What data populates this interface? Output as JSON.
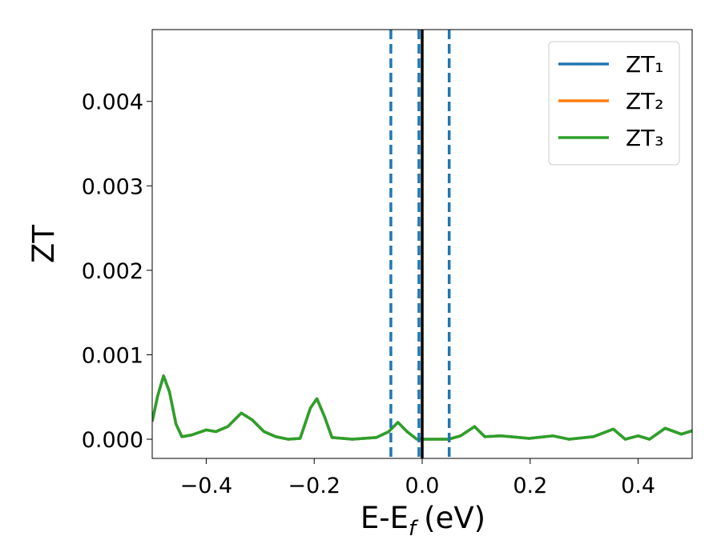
{
  "chart_data": {
    "type": "line",
    "x_label": {
      "main": "E-E",
      "sub": "f",
      "unit": "(eV)"
    },
    "y_label": "ZT",
    "xlim": [
      -0.5,
      0.5
    ],
    "ylim": [
      -0.000227,
      0.00485
    ],
    "xticks": [
      {
        "value": -0.4,
        "label": "−0.4"
      },
      {
        "value": -0.2,
        "label": "−0.2"
      },
      {
        "value": 0,
        "label": "0.0"
      },
      0.2,
      0.4
    ],
    "yticks": [
      {
        "value": 0,
        "label": "0.000"
      },
      {
        "value": 0.001,
        "label": "0.001"
      },
      {
        "value": 0.002,
        "label": "0.002"
      },
      {
        "value": 0.003,
        "label": "0.003"
      },
      {
        "value": 0.004,
        "label": "0.004"
      }
    ],
    "legend": "upper right",
    "vlines": [
      {
        "x": -0.058,
        "color": "#1f77b4",
        "style": "dashed"
      },
      {
        "x": -0.006,
        "color": "#1f77b4",
        "style": "dashed"
      },
      {
        "x": 0.05,
        "color": "#1f77b4",
        "style": "dashed"
      },
      {
        "x": 0,
        "color": "#000000",
        "style": "solid"
      }
    ],
    "x": [
      -0.5,
      -0.49,
      -0.479,
      -0.468,
      -0.456,
      -0.445,
      -0.427,
      -0.4,
      -0.382,
      -0.36,
      -0.335,
      -0.315,
      -0.293,
      -0.271,
      -0.248,
      -0.226,
      -0.207,
      -0.195,
      -0.181,
      -0.167,
      -0.129,
      -0.085,
      -0.062,
      -0.045,
      -0.028,
      -0.01,
      0.049,
      0.071,
      0.097,
      0.116,
      0.146,
      0.198,
      0.242,
      0.272,
      0.317,
      0.354,
      0.376,
      0.4,
      0.421,
      0.45,
      0.48,
      0.5
    ],
    "series": [
      {
        "name": "ZT₁",
        "color": "#1f77b4",
        "values": [
          0.00021,
          0.00051,
          0.00075,
          0.00056,
          0.00018,
          3e-05,
          5e-05,
          0.00011,
          9e-05,
          0.00015,
          0.00031,
          0.00023,
          9e-05,
          3e-05,
          0,
          1e-05,
          0.00037,
          0.00048,
          0.00027,
          2e-05,
          0,
          2e-05,
          9e-05,
          0.0002,
          9e-05,
          0,
          0,
          4e-05,
          0.00015,
          3e-05,
          4e-05,
          1e-05,
          4e-05,
          0,
          3e-05,
          0.00012,
          0,
          4e-05,
          0,
          0.00013,
          6e-05,
          0.0001
        ]
      },
      {
        "name": "ZT₂",
        "color": "#ff7f0e",
        "values": [
          0.00021,
          0.00051,
          0.00075,
          0.00056,
          0.00018,
          3e-05,
          5e-05,
          0.00011,
          9e-05,
          0.00015,
          0.00031,
          0.00023,
          9e-05,
          3e-05,
          0,
          1e-05,
          0.00037,
          0.00048,
          0.00027,
          2e-05,
          0,
          2e-05,
          9e-05,
          0.0002,
          9e-05,
          0,
          0,
          4e-05,
          0.00015,
          3e-05,
          4e-05,
          1e-05,
          4e-05,
          0,
          3e-05,
          0.00012,
          0,
          4e-05,
          0,
          0.00013,
          6e-05,
          0.0001
        ]
      },
      {
        "name": "ZT₃",
        "color": "#2ca02c",
        "values": [
          0.00021,
          0.00051,
          0.00075,
          0.00056,
          0.00018,
          3e-05,
          5e-05,
          0.00011,
          9e-05,
          0.00015,
          0.00031,
          0.00023,
          9e-05,
          3e-05,
          0,
          1e-05,
          0.00037,
          0.00048,
          0.00027,
          2e-05,
          0,
          2e-05,
          9e-05,
          0.0002,
          9e-05,
          0,
          0,
          4e-05,
          0.00015,
          3e-05,
          4e-05,
          1e-05,
          4e-05,
          0,
          3e-05,
          0.00012,
          0,
          4e-05,
          0,
          0.00013,
          6e-05,
          0.0001
        ]
      }
    ]
  }
}
